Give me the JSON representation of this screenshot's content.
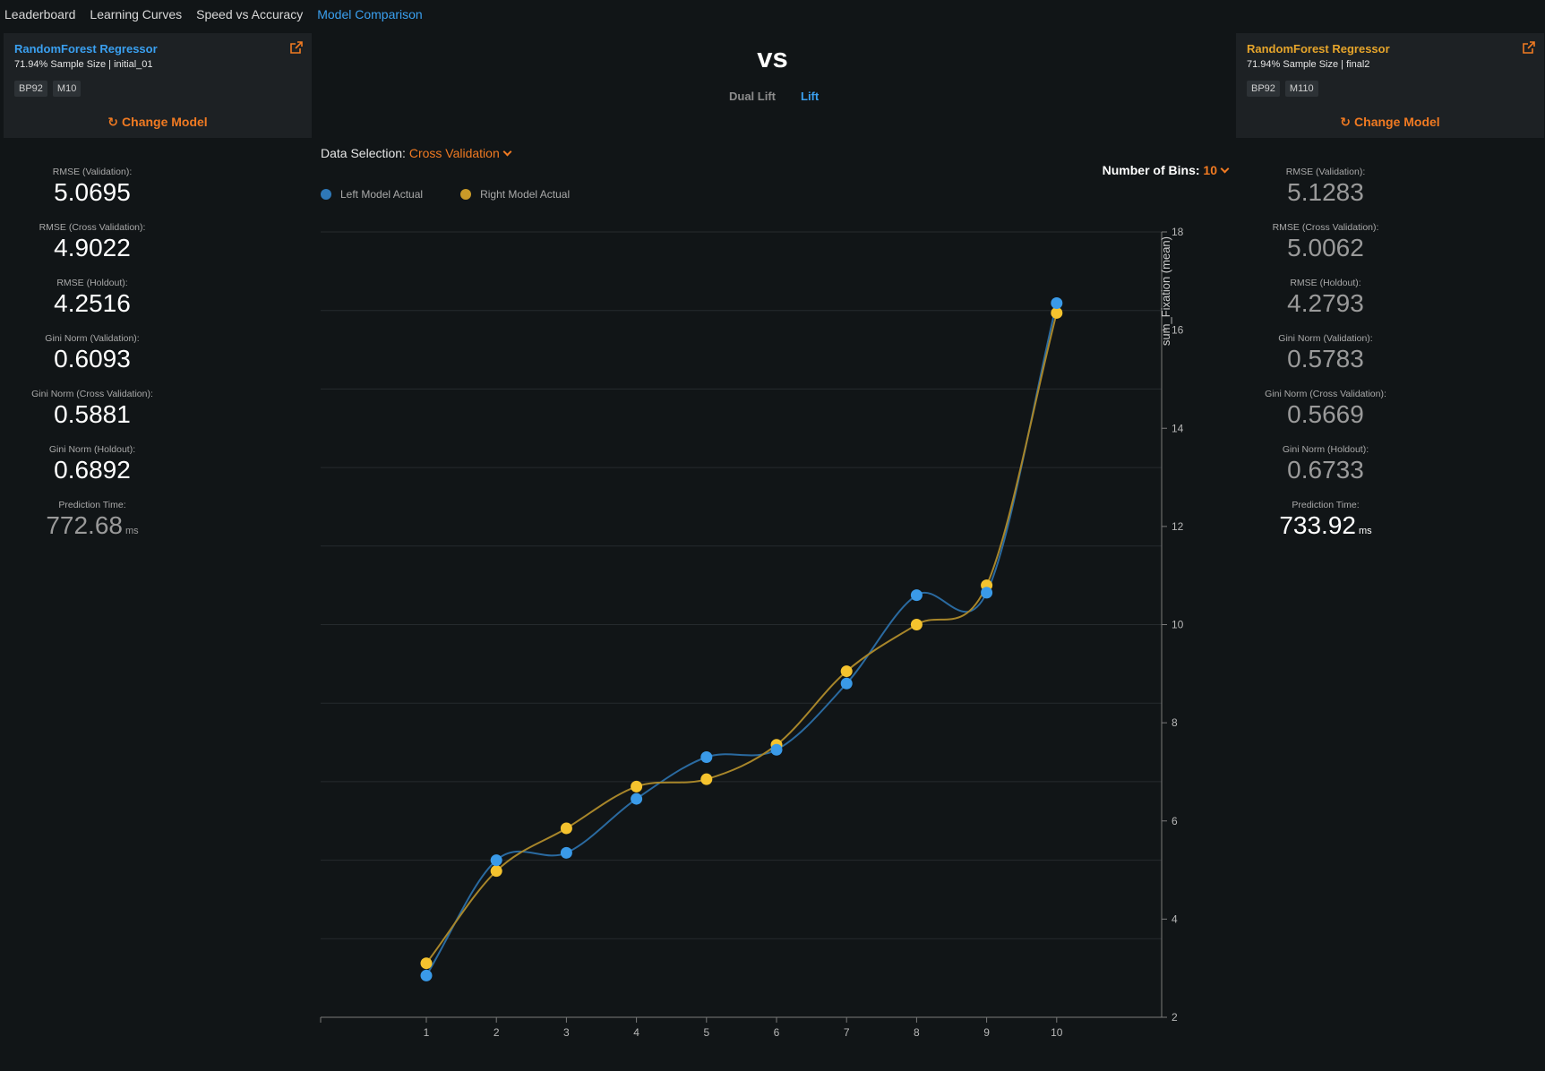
{
  "nav": {
    "tabs": [
      {
        "label": "Leaderboard",
        "active": false
      },
      {
        "label": "Learning Curves",
        "active": false
      },
      {
        "label": "Speed vs Accuracy",
        "active": false
      },
      {
        "label": "Model Comparison",
        "active": true
      }
    ]
  },
  "left_model": {
    "name": "RandomForest Regressor",
    "subtitle": "71.94% Sample Size | initial_01",
    "badges": [
      "BP92",
      "M10"
    ],
    "change_label": "Change Model",
    "color": "#3aa0f0"
  },
  "right_model": {
    "name": "RandomForest Regressor",
    "subtitle": "71.94% Sample Size | final2",
    "badges": [
      "BP92",
      "M110"
    ],
    "change_label": "Change Model",
    "color": "#e6a52b"
  },
  "vs_label": "vs",
  "sub_tabs": [
    {
      "label": "Dual Lift",
      "active": false
    },
    {
      "label": "Lift",
      "active": true
    }
  ],
  "metrics": {
    "labels": [
      "RMSE (Validation):",
      "RMSE (Cross Validation):",
      "RMSE (Holdout):",
      "Gini Norm (Validation):",
      "Gini Norm (Cross Validation):",
      "Gini Norm (Holdout):",
      "Prediction Time:"
    ],
    "left": [
      "5.0695",
      "4.9022",
      "4.2516",
      "0.6093",
      "0.5881",
      "0.6892",
      "772.68"
    ],
    "right": [
      "5.1283",
      "5.0062",
      "4.2793",
      "0.5783",
      "0.5669",
      "0.6733",
      "733.92"
    ],
    "time_unit": "ms"
  },
  "data_selection": {
    "label": "Data Selection:",
    "value": "Cross Validation"
  },
  "bins": {
    "label": "Number of Bins:",
    "value": "10"
  },
  "legend": [
    {
      "label": "Left Model Actual",
      "color": "#2e78b8"
    },
    {
      "label": "Right Model Actual",
      "color": "#c99a28"
    }
  ],
  "chart_data": {
    "type": "line",
    "x": [
      1,
      2,
      3,
      4,
      5,
      6,
      7,
      8,
      9,
      10
    ],
    "series": [
      {
        "name": "Left Model Actual",
        "values": [
          2.85,
          5.2,
          5.35,
          6.45,
          7.3,
          7.45,
          8.8,
          10.6,
          10.65,
          16.55
        ],
        "point_color": "#3a9ae8",
        "line_color": "#2a6aa0"
      },
      {
        "name": "Right Model Actual",
        "values": [
          3.1,
          4.98,
          5.85,
          6.7,
          6.85,
          7.55,
          9.05,
          10.0,
          10.8,
          16.35
        ],
        "point_color": "#f5c32e",
        "line_color": "#a8862a"
      }
    ],
    "ylabel": "sum_Fixation (mean)",
    "xlabel": "",
    "ylim": [
      2,
      18
    ],
    "yticks": [
      2,
      4,
      6,
      8,
      10,
      12,
      14,
      16,
      18
    ],
    "xticks": [
      1,
      2,
      3,
      4,
      5,
      6,
      7,
      8,
      9,
      10
    ],
    "grid": true
  }
}
